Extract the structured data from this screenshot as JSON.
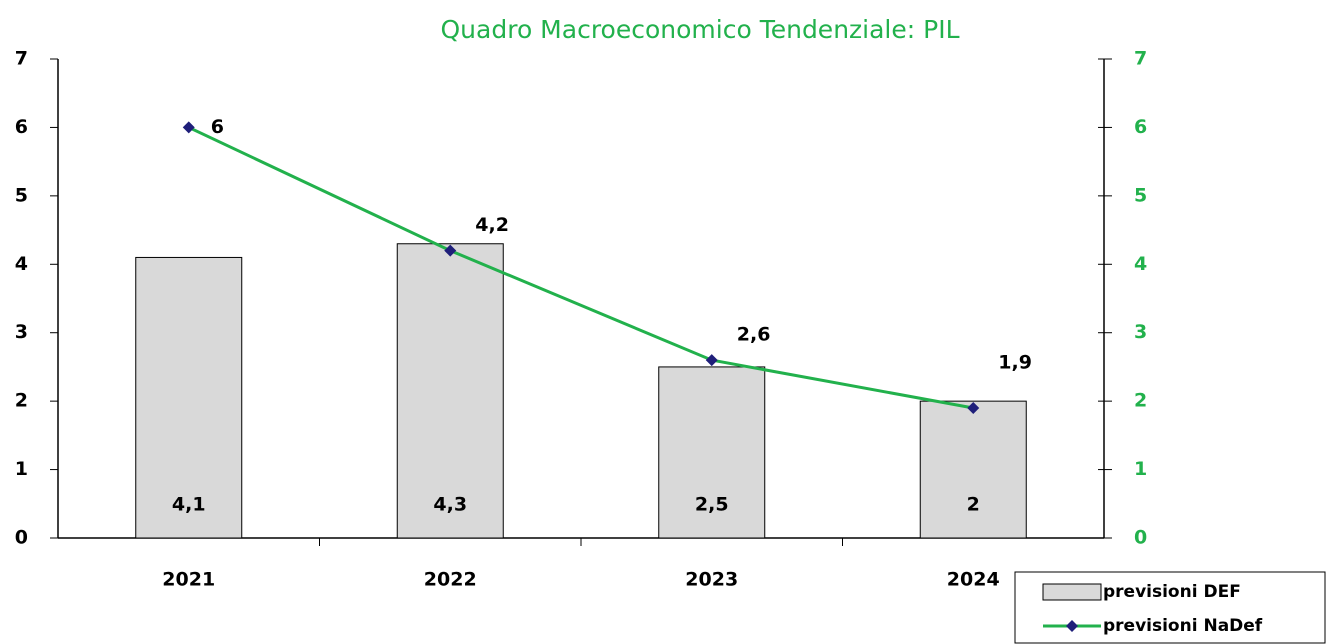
{
  "chart_data": {
    "type": "bar-line",
    "title": "Quadro Macroeconomico Tendenziale: PIL",
    "categories": [
      "2021",
      "2022",
      "2023",
      "2024"
    ],
    "series": [
      {
        "name": "previsioni DEF",
        "type": "bar",
        "color": "#d9d9d9",
        "values": [
          4.1,
          4.3,
          2.5,
          2
        ],
        "value_labels": [
          "4,1",
          "4,3",
          "2,5",
          "2"
        ]
      },
      {
        "name": "previsioni NaDef",
        "type": "line",
        "axis": "y2",
        "color": "#22b14c",
        "marker_color": "#1f1f7a",
        "values": [
          6,
          4.2,
          2.6,
          1.9
        ],
        "value_labels": [
          "6",
          "4,2",
          "2,6",
          "1,9"
        ]
      }
    ],
    "ylim": [
      0,
      7
    ],
    "yticks": [
      0,
      1,
      2,
      3,
      4,
      5,
      6,
      7
    ],
    "y2lim": [
      0,
      7
    ],
    "y2ticks": [
      0,
      1,
      2,
      3,
      4,
      5,
      6,
      7
    ],
    "y2_color": "#22b14c",
    "legend": "lower right"
  }
}
